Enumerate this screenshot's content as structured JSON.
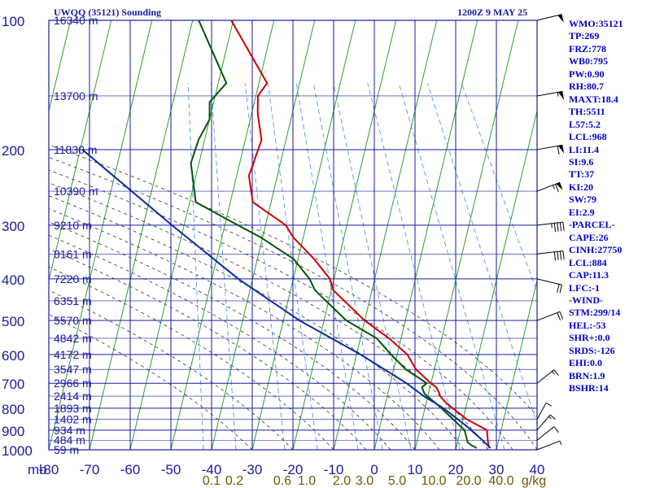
{
  "header": {
    "title": "UWQQ (35121) Sounding",
    "time": "1200Z  9 MAY 25"
  },
  "stats": [
    "WMO:35121",
    "TP:269",
    "FRZ:778",
    "WB0:795",
    "PW:0.90",
    "RH:80.7",
    "MAXT:18.4",
    "TH:5511",
    "L57:5.2",
    "LCL:968",
    "LI:11.4",
    "SI:9.6",
    "TT:37",
    "KI:20",
    "SW:79",
    "EI:2.9",
    "-PARCEL-",
    "CAPE:26",
    "CINH:27750",
    "LCL:884",
    "CAP:11.3",
    "LFC:-1",
    "-WIND-",
    "STM:299/14",
    "HEL:-53",
    "SHR+:0.0",
    "SRDS:-126",
    "EHI:0.0",
    "BRN:1.9",
    "BSHR:14"
  ],
  "colors": {
    "grid": "#1a1aa0",
    "isotherm": "#2ca02c",
    "temperature": "#cc0000",
    "dewpoint": "#005500",
    "parcel": "#0a2aa0",
    "moist_adiabat": "#333333",
    "mixing_ratio": "#5599dd",
    "mixing_label": "#6b5a00"
  },
  "chart_data": {
    "type": "line",
    "chart_kind": "skew-T log-P sounding",
    "x_axis": {
      "unit_label": "mb",
      "range": [
        -80,
        0
      ],
      "ticks": [
        "-80",
        "-70",
        "-60",
        "-50",
        "-40",
        "-30",
        "-20",
        "-10",
        "0",
        "10",
        "20",
        "30",
        "40"
      ]
    },
    "y_axis": {
      "scale": "log",
      "range": [
        1000,
        100
      ],
      "ticks": [
        100,
        200,
        300,
        400,
        500,
        600,
        700,
        800,
        900,
        1000
      ],
      "height_labels": [
        {
          "p": 100,
          "label": "16340 m"
        },
        {
          "p": 150,
          "label": "13700 m"
        },
        {
          "p": 200,
          "label": "11830 m"
        },
        {
          "p": 250,
          "label": "10390 m"
        },
        {
          "p": 300,
          "label": "9210 m"
        },
        {
          "p": 350,
          "label": "8161 m"
        },
        {
          "p": 400,
          "label": "7220 m"
        },
        {
          "p": 450,
          "label": "6351 m"
        },
        {
          "p": 500,
          "label": "5570 m"
        },
        {
          "p": 550,
          "label": "4842 m"
        },
        {
          "p": 600,
          "label": "4172 m"
        },
        {
          "p": 650,
          "label": "3547 m"
        },
        {
          "p": 700,
          "label": "2966 m"
        },
        {
          "p": 750,
          "label": "2414 m"
        },
        {
          "p": 800,
          "label": "1893 m"
        },
        {
          "p": 850,
          "label": "1402 m"
        },
        {
          "p": 900,
          "label": "934 m"
        },
        {
          "p": 950,
          "label": "484 m"
        },
        {
          "p": 1000,
          "label": "59 m"
        }
      ]
    },
    "mixing_ratio_labels": [
      "0.1",
      "0.2",
      "0.6",
      "1.0",
      "2.0",
      "3.0",
      "5.0",
      "10.0",
      "20.0",
      "40.0",
      "g/kg"
    ],
    "series": [
      {
        "key": "temperature",
        "points": [
          {
            "p": 100,
            "t": -70.5
          },
          {
            "p": 140,
            "t": -58.0
          },
          {
            "p": 150,
            "t": -59.5
          },
          {
            "p": 165,
            "t": -58.5
          },
          {
            "p": 190,
            "t": -56.0
          },
          {
            "p": 230,
            "t": -57.0
          },
          {
            "p": 265,
            "t": -54.5
          },
          {
            "p": 300,
            "t": -45.0
          },
          {
            "p": 320,
            "t": -42.5
          },
          {
            "p": 360,
            "t": -36.0
          },
          {
            "p": 400,
            "t": -31.0
          },
          {
            "p": 425,
            "t": -29.5
          },
          {
            "p": 500,
            "t": -20.0
          },
          {
            "p": 550,
            "t": -13.0
          },
          {
            "p": 600,
            "t": -7.5
          },
          {
            "p": 650,
            "t": -4.5
          },
          {
            "p": 700,
            "t": 0.0
          },
          {
            "p": 715,
            "t": 1.5
          },
          {
            "p": 735,
            "t": 2.5
          },
          {
            "p": 750,
            "t": 3.0
          },
          {
            "p": 780,
            "t": 5.0
          },
          {
            "p": 850,
            "t": 11.0
          },
          {
            "p": 900,
            "t": 16.5
          },
          {
            "p": 960,
            "t": 17.5
          },
          {
            "p": 985,
            "t": 18.0
          },
          {
            "p": 990,
            "t": 18.4
          }
        ]
      },
      {
        "key": "dewpoint",
        "points": [
          {
            "p": 100,
            "t": -78.5
          },
          {
            "p": 140,
            "t": -68.0
          },
          {
            "p": 155,
            "t": -71.0
          },
          {
            "p": 170,
            "t": -70.0
          },
          {
            "p": 190,
            "t": -71.5
          },
          {
            "p": 215,
            "t": -72.0
          },
          {
            "p": 265,
            "t": -68.5
          },
          {
            "p": 290,
            "t": -60.0
          },
          {
            "p": 320,
            "t": -50.5
          },
          {
            "p": 360,
            "t": -41.0
          },
          {
            "p": 400,
            "t": -36.0
          },
          {
            "p": 425,
            "t": -34.0
          },
          {
            "p": 500,
            "t": -24.5
          },
          {
            "p": 550,
            "t": -16.0
          },
          {
            "p": 600,
            "t": -11.5
          },
          {
            "p": 650,
            "t": -7.0
          },
          {
            "p": 700,
            "t": -1.0
          },
          {
            "p": 715,
            "t": -2.0
          },
          {
            "p": 740,
            "t": -1.0
          },
          {
            "p": 800,
            "t": 4.0
          },
          {
            "p": 900,
            "t": 11.0
          },
          {
            "p": 960,
            "t": 12.5
          },
          {
            "p": 975,
            "t": 13.5
          },
          {
            "p": 990,
            "t": 15.0
          }
        ]
      },
      {
        "key": "parcel",
        "points": [
          {
            "p": 200,
            "t": -99.5
          },
          {
            "p": 300,
            "t": -73.0
          },
          {
            "p": 400,
            "t": -53.5
          },
          {
            "p": 500,
            "t": -36.0
          },
          {
            "p": 600,
            "t": -19.0
          },
          {
            "p": 700,
            "t": -6.0
          },
          {
            "p": 750,
            "t": -1.0
          },
          {
            "p": 800,
            "t": 4.5
          },
          {
            "p": 884,
            "t": 11.5
          },
          {
            "p": 950,
            "t": 16.0
          },
          {
            "p": 990,
            "t": 18.4
          }
        ]
      }
    ],
    "wind_barbs": [
      {
        "p": 100,
        "dir": 290,
        "spd": 50
      },
      {
        "p": 150,
        "dir": 285,
        "spd": 55
      },
      {
        "p": 200,
        "dir": 285,
        "spd": 60
      },
      {
        "p": 250,
        "dir": 300,
        "spd": 65
      },
      {
        "p": 300,
        "dir": 280,
        "spd": 45
      },
      {
        "p": 350,
        "dir": 280,
        "spd": 40
      },
      {
        "p": 400,
        "dir": 250,
        "spd": 20
      },
      {
        "p": 500,
        "dir": 300,
        "spd": 20
      },
      {
        "p": 700,
        "dir": 320,
        "spd": 15
      },
      {
        "p": 850,
        "dir": 340,
        "spd": 10
      },
      {
        "p": 900,
        "dir": 330,
        "spd": 15
      },
      {
        "p": 950,
        "dir": 320,
        "spd": 10
      },
      {
        "p": 1000,
        "dir": 300,
        "spd": 5
      }
    ]
  }
}
